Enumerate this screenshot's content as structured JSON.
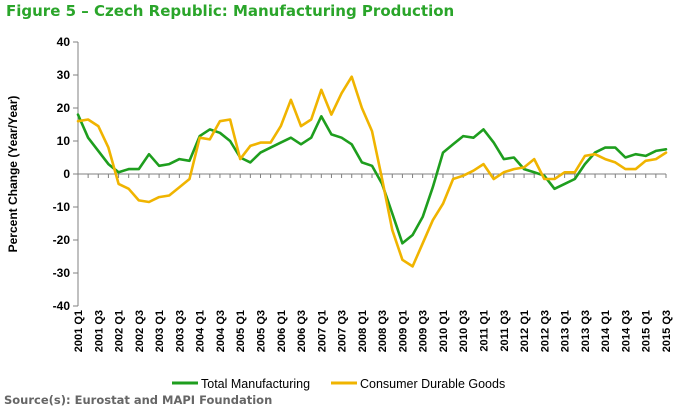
{
  "title": "Figure 5 – Czech Republic: Manufacturing Production",
  "source": "Source(s): Eurostat and MAPI Foundation",
  "colors": {
    "total_manufacturing": "#1e9e1e",
    "consumer_durable": "#f0b400",
    "title": "#2aa52a",
    "axis": "#808080"
  },
  "chart_data": {
    "type": "line",
    "title": "Figure 5 – Czech Republic: Manufacturing Production",
    "ylabel": "Percent Change (Year/Year)",
    "xlabel": "",
    "ylim": [
      -40,
      40
    ],
    "yticks": [
      40,
      30,
      20,
      10,
      0,
      -10,
      -20,
      -30,
      -40
    ],
    "grid": false,
    "legend_position": "bottom",
    "categories": [
      "2001 Q1",
      "2001 Q2",
      "2001 Q3",
      "2001 Q4",
      "2002 Q1",
      "2002 Q2",
      "2002 Q3",
      "2002 Q4",
      "2003 Q1",
      "2003 Q2",
      "2003 Q3",
      "2003 Q4",
      "2004 Q1",
      "2004 Q2",
      "2004 Q3",
      "2004 Q4",
      "2005 Q1",
      "2005 Q2",
      "2005 Q3",
      "2005 Q4",
      "2006 Q1",
      "2006 Q2",
      "2006 Q3",
      "2006 Q4",
      "2007 Q1",
      "2007 Q2",
      "2007 Q3",
      "2007 Q4",
      "2008 Q1",
      "2008 Q2",
      "2008 Q3",
      "2008 Q4",
      "2009 Q1",
      "2009 Q2",
      "2009 Q3",
      "2009 Q4",
      "2010 Q1",
      "2010 Q2",
      "2010 Q3",
      "2010 Q4",
      "2011 Q1",
      "2011 Q2",
      "2011 Q3",
      "2011 Q4",
      "2012 Q1",
      "2012 Q2",
      "2012 Q3",
      "2012 Q4",
      "2013 Q1",
      "2013 Q2",
      "2013 Q3",
      "2013 Q4",
      "2014 Q1",
      "2014 Q2",
      "2014 Q3",
      "2014 Q4",
      "2015 Q1",
      "2015 Q2",
      "2015 Q3"
    ],
    "tick_labels": [
      "2001 Q1",
      "2001 Q3",
      "2002 Q1",
      "2002 Q3",
      "2003 Q1",
      "2003 Q3",
      "2004 Q1",
      "2004 Q3",
      "2005 Q1",
      "2005 Q3",
      "2006 Q1",
      "2006 Q3",
      "2007 Q1",
      "2007 Q3",
      "2008 Q1",
      "2008 Q3",
      "2009 Q1",
      "2009 Q3",
      "2010 Q1",
      "2010 Q3",
      "2011 Q1",
      "2011 Q3",
      "2012 Q1",
      "2012 Q3",
      "2013 Q1",
      "2013 Q3",
      "2014 Q1",
      "2014 Q3",
      "2015 Q1",
      "2015 Q3"
    ],
    "series": [
      {
        "name": "Total Manufacturing",
        "color": "#1e9e1e",
        "values": [
          18,
          11,
          7,
          3,
          0.5,
          1.5,
          1.5,
          6,
          2.5,
          3,
          4.5,
          4,
          11.5,
          13.5,
          12.5,
          10,
          5,
          3.5,
          6.5,
          8,
          9.5,
          11,
          9,
          11,
          17.5,
          12,
          11,
          9,
          3.5,
          2.5,
          -3,
          -12,
          -21,
          -18.5,
          -13,
          -4,
          6.5,
          9,
          11.5,
          11,
          13.5,
          9.5,
          4.5,
          5,
          1.5,
          0.5,
          -0.5,
          -4.5,
          -3,
          -1.5,
          3,
          6.5,
          8,
          8,
          5,
          6,
          5.5,
          7,
          7.5
        ]
      },
      {
        "name": "Consumer Durable Goods",
        "color": "#f0b400",
        "values": [
          16,
          16.5,
          14.5,
          8,
          -3,
          -4.5,
          -8,
          -8.5,
          -7,
          -6.5,
          -4,
          -1.5,
          11,
          10.5,
          16,
          16.5,
          4.5,
          8.5,
          9.5,
          9.5,
          14.5,
          22.5,
          14.5,
          16.5,
          25.5,
          18,
          24.5,
          29.5,
          20,
          13,
          -1.5,
          -17,
          -26,
          -28,
          -21,
          -14,
          -9,
          -1.5,
          -0.5,
          1,
          3,
          -1.5,
          0.5,
          1.5,
          2,
          4.5,
          -1.5,
          -1.5,
          0.5,
          0.5,
          5.5,
          6,
          4.5,
          3.5,
          1.5,
          1.5,
          4,
          4.5,
          6.5
        ]
      }
    ]
  }
}
